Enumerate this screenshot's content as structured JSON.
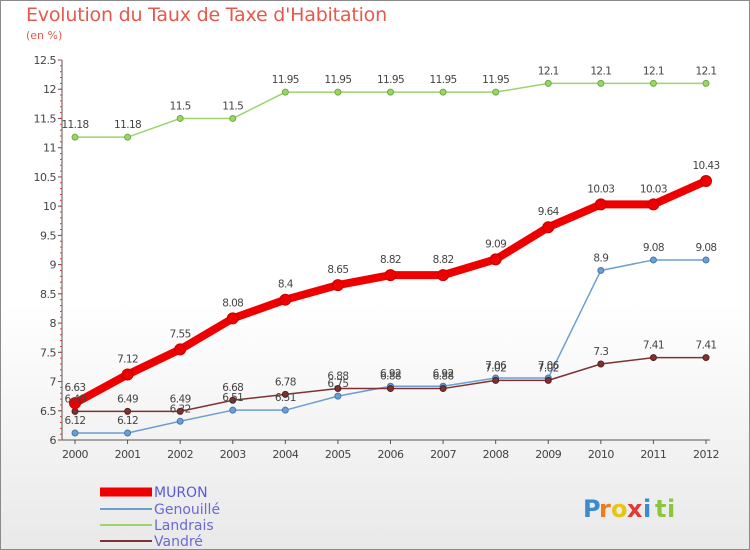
{
  "title": "Evolution du Taux de Taxe d'Habitation",
  "subtitle": "(en %)",
  "brand": {
    "letters": [
      {
        "ch": "P",
        "color": "#3b8bd0"
      },
      {
        "ch": "r",
        "color": "#ee7d1a"
      },
      {
        "ch": "o",
        "color": "#e8c417"
      },
      {
        "ch": "x",
        "color": "#e23a33"
      },
      {
        "ch": "i",
        "color": "#3b8bd0"
      },
      {
        "ch": "t",
        "color": "#8cc63f"
      },
      {
        "ch": "i",
        "color": "#8cc63f"
      }
    ]
  },
  "chart_data": {
    "type": "line",
    "title": "Evolution du Taux de Taxe d'Habitation",
    "ylabel": "(en %)",
    "xlabel": "",
    "x": [
      "2000",
      "2001",
      "2002",
      "2003",
      "2004",
      "2005",
      "2006",
      "2007",
      "2008",
      "2009",
      "2010",
      "2011",
      "2012"
    ],
    "ylim": [
      6,
      12.5
    ],
    "yticks": [
      "6",
      "6.5",
      "7",
      "7.5",
      "8",
      "8.5",
      "9",
      "9.5",
      "10",
      "10.5",
      "11",
      "11.5",
      "12",
      "12.5"
    ],
    "grid": false,
    "legend_position": "bottom-left",
    "series": [
      {
        "name": "MURON",
        "color": "#ee0000",
        "width": 8,
        "marker": 11,
        "values": [
          6.63,
          7.12,
          7.55,
          8.08,
          8.4,
          8.65,
          8.82,
          8.82,
          9.09,
          9.64,
          10.03,
          10.03,
          10.43
        ],
        "labels": [
          "6.63",
          "7.12",
          "7.55",
          "8.08",
          "8.4",
          "8.65",
          "8.82",
          "8.82",
          "9.09",
          "9.64",
          "10.03",
          "10.03",
          "10.43"
        ]
      },
      {
        "name": "Genouillé",
        "color": "#6e9ed0",
        "width": 1.5,
        "marker": 6,
        "values": [
          6.12,
          6.12,
          6.32,
          6.51,
          6.51,
          6.75,
          6.92,
          6.92,
          7.06,
          7.06,
          8.9,
          9.08,
          9.08
        ],
        "labels": [
          "6.12",
          "6.12",
          "6.32",
          "6.51",
          "6.51",
          "6.75",
          "6.92",
          "6.92",
          "7.06",
          "7.06",
          "8.9",
          "9.08",
          "9.08"
        ]
      },
      {
        "name": "Landrais",
        "color": "#9cd36c",
        "width": 1.5,
        "marker": 6,
        "values": [
          11.18,
          11.18,
          11.5,
          11.5,
          11.95,
          11.95,
          11.95,
          11.95,
          11.95,
          12.1,
          12.1,
          12.1,
          12.1
        ],
        "labels": [
          "11.18",
          "11.18",
          "11.5",
          "11.5",
          "11.95",
          "11.95",
          "11.95",
          "11.95",
          "11.95",
          "12.1",
          "12.1",
          "12.1",
          "12.1"
        ]
      },
      {
        "name": "Vandré",
        "color": "#7b3333",
        "width": 1.5,
        "marker": 6,
        "values": [
          6.49,
          6.49,
          6.49,
          6.68,
          6.78,
          6.88,
          6.88,
          6.88,
          7.02,
          7.02,
          7.3,
          7.41,
          7.41
        ],
        "labels": [
          "6.49",
          "6.49",
          "6.49",
          "6.68",
          "6.78",
          "6.88",
          "6.88",
          "6.88",
          "7.02",
          "7.02",
          "7.3",
          "7.41",
          "7.41"
        ]
      }
    ]
  }
}
